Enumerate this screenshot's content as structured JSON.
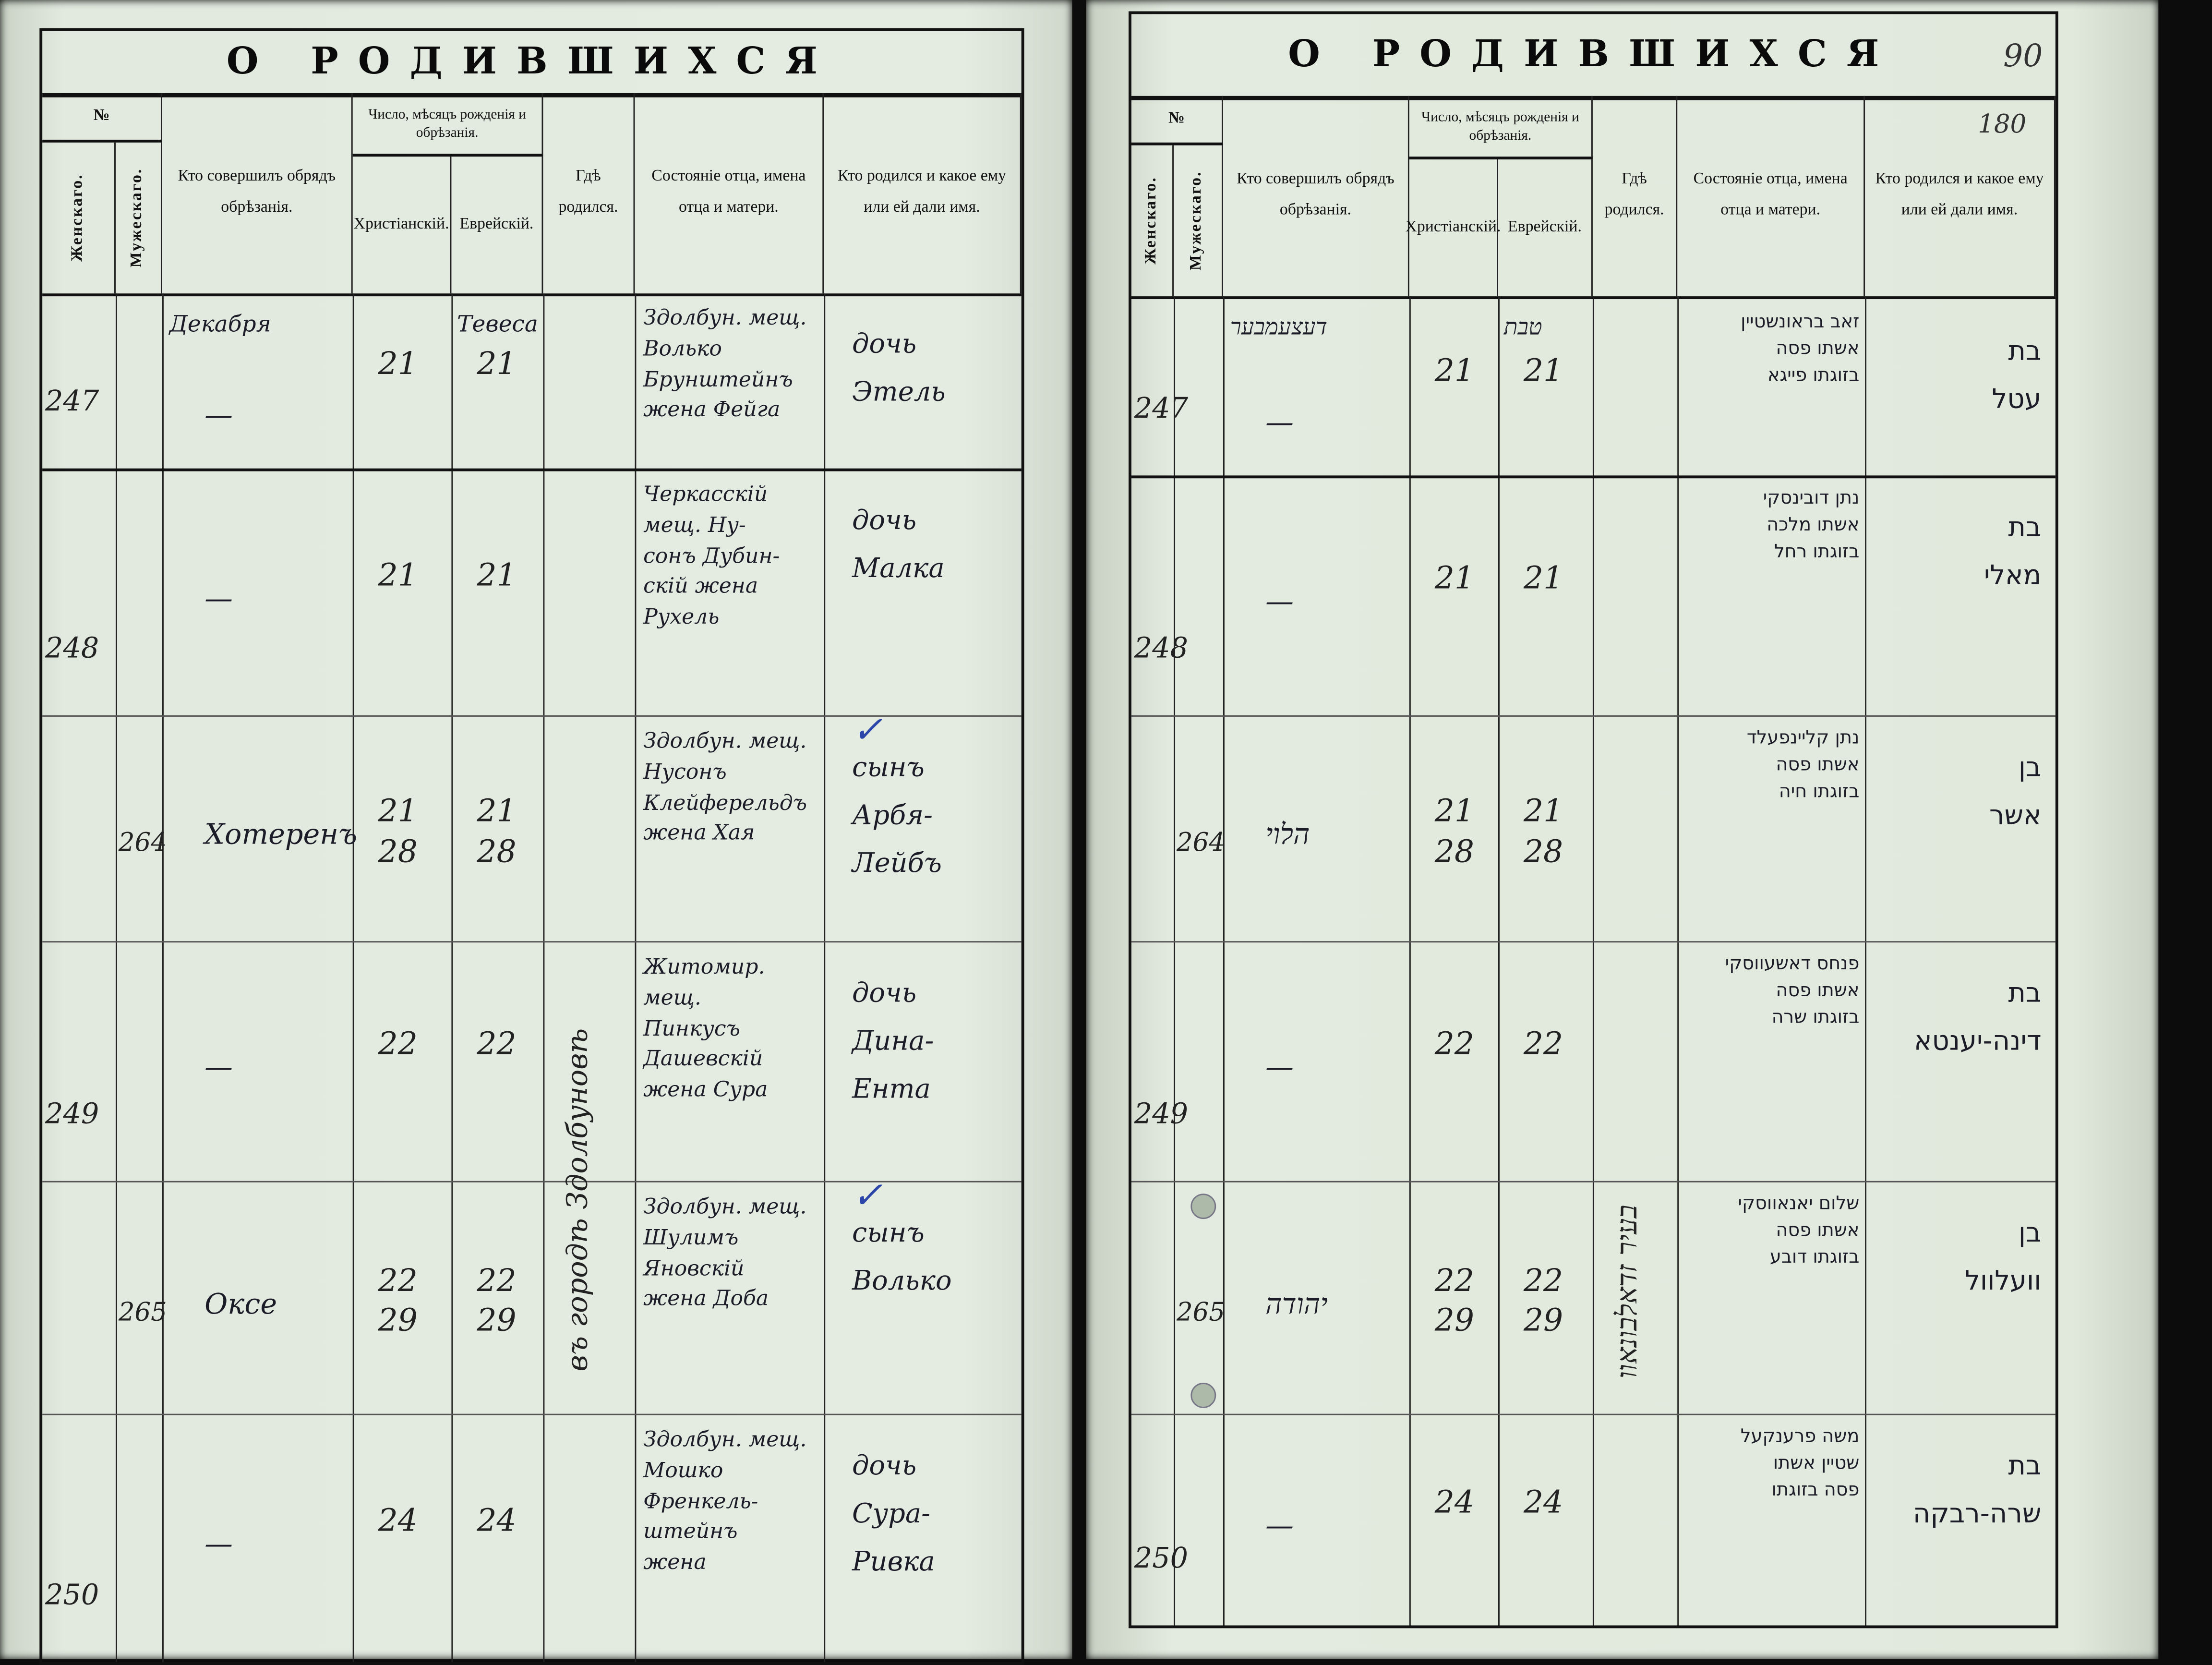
{
  "left_page": {
    "title": "О РОДИВШИХСЯ",
    "headers": {
      "number": "№",
      "female": "Женскаго.",
      "male": "Мужескаго.",
      "performer": "Кто совершилъ обрядъ обрѣзанія.",
      "date_group": "Число, мѣсяцъ рожденія и обрѣзанія.",
      "christian": "Христіанскій.",
      "jewish": "Еврейскій.",
      "place": "Гдѣ родился.",
      "parents": "Состояніе отца, имена отца и матери.",
      "child": "Кто родился и какое ему или ей дали имя."
    },
    "month_christian": "Декабря",
    "month_jewish": "Тевеса",
    "place_vertical": "въ городѣ Здолбуновѣ",
    "entries": [
      {
        "female_no": "247",
        "male_no": "",
        "performer": "—",
        "christian": "21",
        "jewish": "21",
        "parents": "Здолбун. мещ.\nВолько\nБрунштейнъ\nжена Фейга",
        "child": "дочь\nЭтель"
      },
      {
        "female_no": "248",
        "male_no": "",
        "performer": "—",
        "christian": "21",
        "jewish": "21",
        "parents": "Черкасскій\nмещ. Ну-\nсонъ Дубин-\nскій жена\nРухель",
        "child": "дочь\nМалка"
      },
      {
        "female_no": "",
        "male_no": "264",
        "performer": "Хотеренъ",
        "christian": "21\n28",
        "jewish": "21\n28",
        "parents": "Здолбун. мещ.\nНусонъ\nКлейферельдъ\nжена Хая",
        "child": "сынъ\nАрбя-\nЛейбъ",
        "mark": "✓"
      },
      {
        "female_no": "249",
        "male_no": "",
        "performer": "—",
        "christian": "22",
        "jewish": "22",
        "parents": "Житомир. мещ.\nПинкусъ\nДашевскій\nжена Сура",
        "child": "дочь\nДина-\nЕнта"
      },
      {
        "female_no": "",
        "male_no": "265",
        "performer": "Оксе",
        "christian": "22\n29",
        "jewish": "22\n29",
        "parents": "Здолбун. мещ.\nШулимъ\nЯновскій\nжена Доба",
        "child": "сынъ\nВолько",
        "mark": "✓"
      },
      {
        "female_no": "250",
        "male_no": "",
        "performer": "—",
        "christian": "24",
        "jewish": "24",
        "parents": "Здолбун. мещ.\nМошко\nФренкель-\nштейнъ\nжена",
        "child": "дочь\nСура-\nРивка"
      }
    ]
  },
  "right_page": {
    "title": "О РОДИВШИХСЯ",
    "folio_top": "90",
    "folio_second": "180",
    "headers": {
      "number": "№",
      "female": "Женскаго.",
      "male": "Мужескаго.",
      "performer": "Кто совершилъ обрядъ обрѣзанія.",
      "date_group": "Число, мѣсяцъ рожденія и обрѣзанія.",
      "christian": "Христіанскій.",
      "jewish": "Еврейскій.",
      "place": "Гдѣ родился.",
      "parents": "Состояніе отца, имена отца и матери.",
      "child": "Кто родился и какое ему или ей дали имя."
    },
    "month_christian": "דעצעמבער",
    "month_jewish": "טבת",
    "place_vertical": "בעיר זדאלבונאוו",
    "entries": [
      {
        "female_no": "247",
        "male_no": "",
        "performer": "—",
        "christian": "21",
        "jewish": "21",
        "parents": "זאב בראונשטיין\nאשתו פסה\nבזוגתו פייגא",
        "child": "בת\nעטל"
      },
      {
        "female_no": "248",
        "male_no": "",
        "performer": "—",
        "christian": "21",
        "jewish": "21",
        "parents": "נתן דובינסקי\nאשתו מלכה\nבזוגתו רחל",
        "child": "בת\nמאלי"
      },
      {
        "female_no": "",
        "male_no": "264",
        "performer": "הלוי",
        "christian": "21\n28",
        "jewish": "21\n28",
        "parents": "נתן קליינפעלד\nאשתו פסה\nבזוגתו חיה",
        "child": "בן\nאשר"
      },
      {
        "female_no": "249",
        "male_no": "",
        "performer": "—",
        "christian": "22",
        "jewish": "22",
        "parents": "פנחס דאשעווסקי\nאשתו פסה\nבזוגתו שרה",
        "child": "בת\nדינה-יענטא"
      },
      {
        "female_no": "",
        "male_no": "265",
        "performer": "יהודה",
        "christian": "22\n29",
        "jewish": "22\n29",
        "parents": "שלום יאנאווסקי\nאשתו פסה\nבזוגתו דובע",
        "child": "בן\nוועלוול"
      },
      {
        "female_no": "250",
        "male_no": "",
        "performer": "—",
        "christian": "24",
        "jewish": "24",
        "parents": "משה פרענקעל\nשטיין אשתו\nפסה בזוגתו",
        "child": "בת\nשרה-רבקה"
      }
    ]
  }
}
